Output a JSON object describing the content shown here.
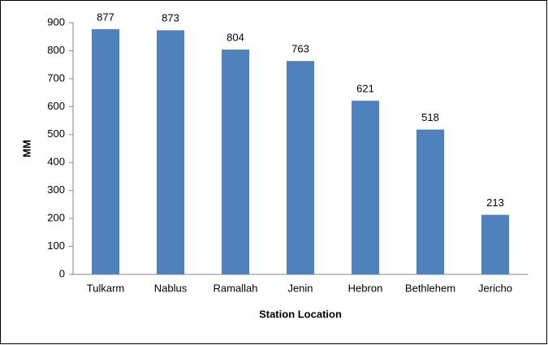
{
  "chart_data": {
    "type": "bar",
    "categories": [
      "Tulkarm",
      "Nablus",
      "Ramallah",
      "Jenin",
      "Hebron",
      "Bethlehem",
      "Jericho"
    ],
    "values": [
      877,
      873,
      804,
      763,
      621,
      518,
      213
    ],
    "color": "#4f81bd",
    "x_label": "Station Location",
    "y_label": "MM",
    "ylim": [
      0,
      900
    ],
    "yticks": [
      0,
      100,
      200,
      300,
      400,
      500,
      600,
      700,
      800,
      900
    ]
  }
}
